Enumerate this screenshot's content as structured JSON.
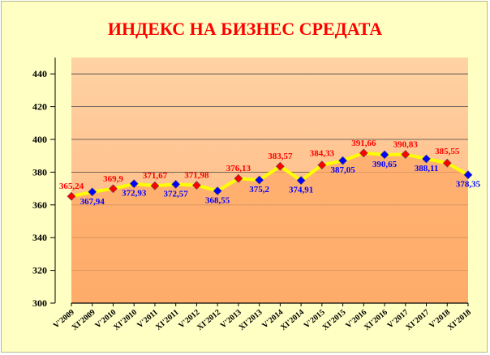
{
  "chart_data": {
    "type": "line",
    "title": "ИНДЕКС НА БИЗНЕС СРЕДАТА",
    "xlabel": "",
    "ylabel": "",
    "ylim": [
      300,
      450
    ],
    "yticks": [
      "440",
      "420",
      "400",
      "380",
      "360",
      "340",
      "320",
      "300"
    ],
    "grid": true,
    "legend": "none",
    "categories": [
      "V'2009",
      "XI'2009",
      "V'2010",
      "XI'2010",
      "V'2011",
      "XI'2011",
      "V'2012",
      "XI'2012",
      "V'2013",
      "XI'2013",
      "V'2014",
      "XI'2014",
      "V'2015",
      "XI'2015",
      "V'2016",
      "XI'2016",
      "V'2017",
      "XI'2017",
      "V'2018",
      "XI'2018"
    ],
    "values": [
      365.24,
      367.94,
      369.9,
      372.93,
      371.67,
      372.57,
      371.98,
      368.55,
      376.13,
      375.2,
      383.57,
      374.91,
      384.33,
      387.05,
      391.66,
      390.65,
      390.83,
      388.11,
      385.55,
      378.35
    ],
    "data_labels": [
      "365,24",
      "367,94",
      "369,9",
      "372,93",
      "371,67",
      "372,57",
      "371,98",
      "368,55",
      "376,13",
      "375,2",
      "383,57",
      "374,91",
      "384,33",
      "387,05",
      "391,66",
      "390,65",
      "390,83",
      "388,11",
      "385,55",
      "378,35"
    ],
    "colors": {
      "may_survey": "#ff0000",
      "november_survey": "#0000ff",
      "line": "#ffff00",
      "area": "#ffaa66",
      "plot_bg": "#ffcc99"
    }
  }
}
